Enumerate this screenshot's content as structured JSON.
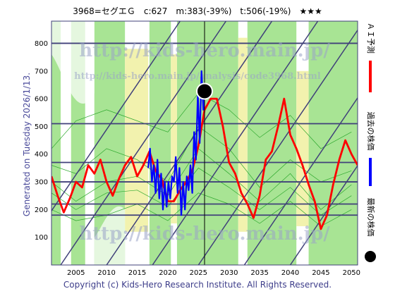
{
  "header": {
    "code_name": "3968=セグエＧ",
    "current": "c:627",
    "mid": "m:383(-39%)",
    "target": "t:506(-19%)",
    "stars": "★★★"
  },
  "side_label": "Generated on Tuesday 2026/1/13.",
  "footer": "Copyright (c) Kids-Hero Research Institute. All Rights Reserved.",
  "watermark": {
    "main": "http://kids-hero.main.jp/",
    "sub": "http://kids-hero.main.jp/analysis/code3968.html"
  },
  "legend": {
    "ai_forecast": "ＡＩ予測",
    "past_price": "過去の株価",
    "latest_price": "最新の株価"
  },
  "colors": {
    "ai_forecast": "#ff0000",
    "past_price": "#0000ff",
    "latest_price": "#000000",
    "band_green": "#a8e494",
    "band_yellow": "#f2f2ae",
    "frame": "#40407a"
  },
  "chart_data": {
    "type": "line",
    "xlim": [
      2001,
      2051
    ],
    "ylim": [
      0,
      880
    ],
    "x_ticks": [
      2005,
      2010,
      2015,
      2020,
      2025,
      2030,
      2035,
      2040,
      2045,
      2050
    ],
    "y_ticks": [
      100,
      200,
      300,
      400,
      500,
      600,
      700,
      800
    ],
    "h_lines": [
      180,
      220,
      300,
      370,
      510,
      800
    ],
    "latest_point": {
      "x": 2026.0,
      "y": 627
    },
    "series": [
      {
        "name": "過去の株価",
        "x": [
          2016.8,
          2017.1,
          2017.4,
          2017.7,
          2018.0,
          2018.3,
          2018.6,
          2018.9,
          2019.2,
          2019.5,
          2019.8,
          2020.1,
          2020.4,
          2020.7,
          2021.0,
          2021.3,
          2021.6,
          2021.9,
          2022.2,
          2022.5,
          2022.8,
          2023.1,
          2023.4,
          2023.7,
          2024.0,
          2024.3,
          2024.6,
          2024.9,
          2025.2,
          2025.5,
          2025.8,
          2026.0
        ],
        "values": [
          350,
          420,
          300,
          360,
          260,
          380,
          240,
          330,
          200,
          300,
          210,
          300,
          240,
          320,
          300,
          390,
          260,
          350,
          180,
          300,
          200,
          320,
          270,
          360,
          260,
          480,
          380,
          620,
          440,
          700,
          560,
          627
        ]
      },
      {
        "name": "ＡＩ予測",
        "x": [
          2001,
          2002,
          2003,
          2004,
          2005,
          2006,
          2007,
          2008,
          2009,
          2010,
          2011,
          2012,
          2013,
          2014,
          2015,
          2016,
          2017,
          2018,
          2019,
          2020,
          2021,
          2022,
          2023,
          2024,
          2025,
          2026,
          2027,
          2028,
          2029,
          2030,
          2031,
          2032,
          2033,
          2034,
          2035,
          2036,
          2037,
          2038,
          2039,
          2040,
          2041,
          2042,
          2043,
          2044,
          2045,
          2046,
          2047,
          2048,
          2049,
          2050,
          2051
        ],
        "values": [
          320,
          250,
          190,
          240,
          300,
          280,
          360,
          330,
          380,
          300,
          250,
          310,
          360,
          390,
          320,
          360,
          410,
          340,
          310,
          230,
          230,
          270,
          300,
          340,
          430,
          560,
          600,
          600,
          500,
          370,
          330,
          260,
          220,
          170,
          250,
          380,
          410,
          500,
          600,
          470,
          420,
          360,
          290,
          230,
          130,
          180,
          290,
          380,
          450,
          400,
          360
        ]
      }
    ]
  }
}
